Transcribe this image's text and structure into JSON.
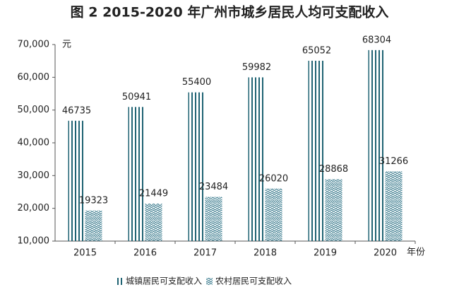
{
  "chart_data": {
    "type": "bar",
    "title": "图 2 2015-2020 年广州市城乡居民人均可支配收入",
    "y_label": "元",
    "x_label": "年份",
    "categories": [
      "2015",
      "2016",
      "2017",
      "2018",
      "2019",
      "2020"
    ],
    "series": [
      {
        "name": "城镇居民可支配收入",
        "color": "#1f6373",
        "pattern": "stripes",
        "values": [
          46735,
          50941,
          55400,
          59982,
          65052,
          68304
        ]
      },
      {
        "name": "农村居民可支配收入",
        "color": "#2f7487",
        "pattern": "waves",
        "values": [
          19323,
          21449,
          23484,
          26020,
          28868,
          31266
        ]
      }
    ],
    "ylim": [
      10000,
      70000
    ],
    "yticks": [
      {
        "value": 10000,
        "label": "10,000"
      },
      {
        "value": 20000,
        "label": "20,000"
      },
      {
        "value": 30000,
        "label": "30,000"
      },
      {
        "value": 40000,
        "label": "40,000"
      },
      {
        "value": 50000,
        "label": "50,000"
      },
      {
        "value": 60000,
        "label": "60,000"
      },
      {
        "value": 70000,
        "label": "70,000"
      }
    ],
    "grid": false,
    "legend": "bottom"
  }
}
